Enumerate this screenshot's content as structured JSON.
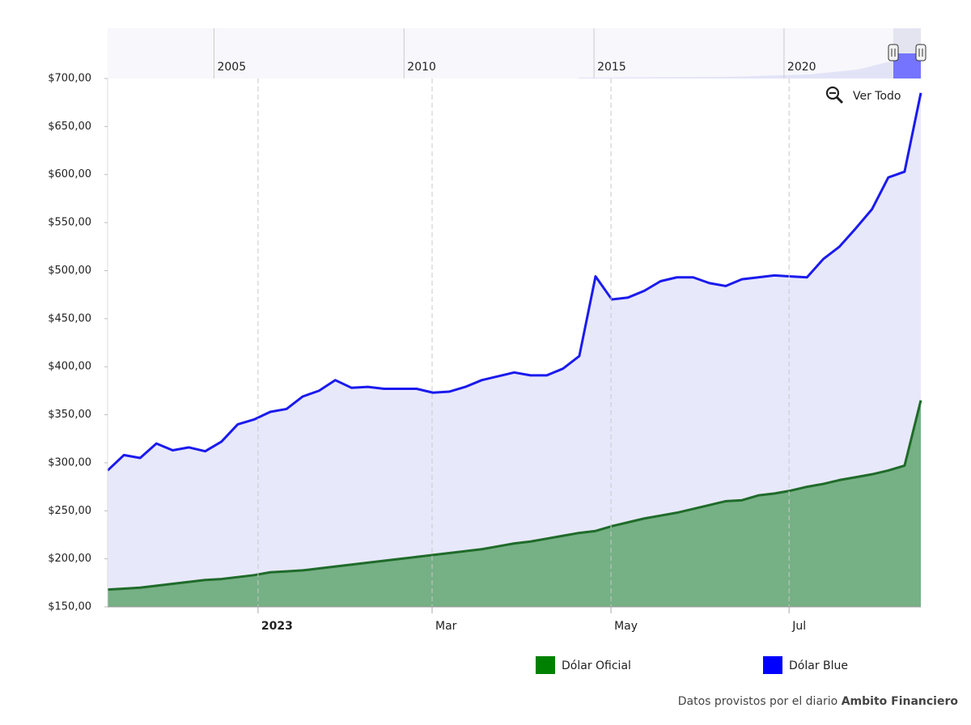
{
  "chart_data": {
    "type": "area",
    "series": [
      {
        "name": "Dólar Oficial",
        "color": "#008000",
        "line_color": "#1f6b2a",
        "fill": "#76b085",
        "values": [
          168,
          169,
          170,
          172,
          174,
          176,
          178,
          179,
          181,
          183,
          186,
          187,
          188,
          190,
          192,
          194,
          196,
          198,
          200,
          202,
          204,
          206,
          208,
          210,
          213,
          216,
          218,
          221,
          224,
          227,
          229,
          234,
          238,
          242,
          245,
          248,
          252,
          256,
          260,
          261,
          266,
          268,
          271,
          275,
          278,
          282,
          285,
          288,
          292,
          297,
          365
        ]
      },
      {
        "name": "Dólar Blue",
        "color": "#0000ff",
        "line_color": "#1a1aee",
        "fill": "#e8e8fb",
        "values": [
          292,
          308,
          305,
          320,
          313,
          316,
          312,
          322,
          340,
          345,
          353,
          356,
          369,
          375,
          386,
          378,
          379,
          377,
          377,
          377,
          373,
          374,
          379,
          386,
          390,
          394,
          391,
          391,
          398,
          411,
          494,
          470,
          472,
          479,
          489,
          493,
          493,
          487,
          484,
          491,
          493,
          495,
          494,
          493,
          512,
          525,
          544,
          564,
          597,
          603,
          685
        ]
      }
    ],
    "xlim": [
      0,
      50
    ],
    "xticks": [
      {
        "value": 9.25,
        "label": "2023"
      },
      {
        "value": 19.95,
        "label": "Mar"
      },
      {
        "value": 30.95,
        "label": "May"
      },
      {
        "value": 41.9,
        "label": "Jul"
      }
    ],
    "ylim": [
      150,
      700
    ],
    "yticks": [
      {
        "value": 150,
        "label": "$150,00"
      },
      {
        "value": 200,
        "label": "$200,00"
      },
      {
        "value": 250,
        "label": "$250,00"
      },
      {
        "value": 300,
        "label": "$300,00"
      },
      {
        "value": 350,
        "label": "$350,00"
      },
      {
        "value": 400,
        "label": "$400,00"
      },
      {
        "value": 450,
        "label": "$450,00"
      },
      {
        "value": 500,
        "label": "$500,00"
      },
      {
        "value": 550,
        "label": "$550,00"
      },
      {
        "value": 600,
        "label": "$600,00"
      },
      {
        "value": 650,
        "label": "$650,00"
      },
      {
        "value": 700,
        "label": "$700,00"
      }
    ],
    "grid": true,
    "legend": "bottom",
    "navigator": {
      "xlim": [
        2002.2,
        2023.6
      ],
      "xticks": [
        2005,
        2010,
        2015,
        2020
      ]
    },
    "reset_button": "Ver Todo",
    "source_prefix": "Datos provistos por el diario",
    "source_name": "Ambito Financiero"
  }
}
